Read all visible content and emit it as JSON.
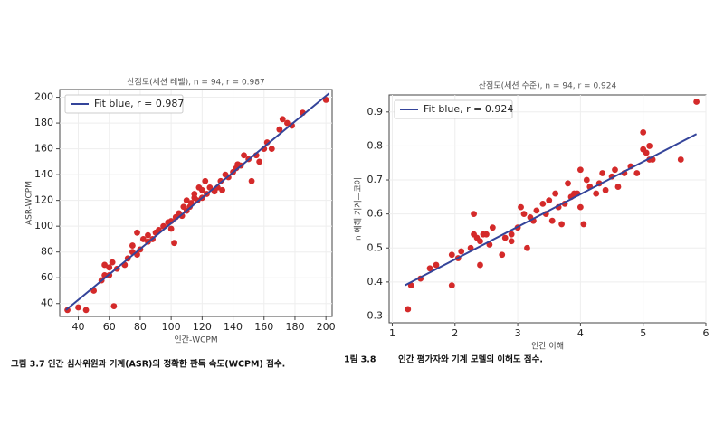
{
  "chart_data": [
    {
      "type": "scatter",
      "title": "산점도(세션 레벨), n = 94, r = 0.987",
      "x_label": "인간-WCPM",
      "y_label": "ASR-WCPM",
      "xlim": [
        28,
        204
      ],
      "ylim": [
        30,
        206
      ],
      "xticks": [
        40,
        60,
        80,
        100,
        120,
        140,
        160,
        180,
        200
      ],
      "yticks": [
        40,
        60,
        80,
        100,
        120,
        140,
        160,
        180,
        200
      ],
      "grid": true,
      "legend": "upper left",
      "points": {
        "color": "#d42a2a",
        "x": [
          33,
          40,
          45,
          50,
          55,
          57,
          57,
          60,
          60,
          63,
          62,
          65,
          70,
          72,
          75,
          75,
          78,
          78,
          80,
          82,
          85,
          85,
          88,
          90,
          92,
          95,
          98,
          100,
          100,
          102,
          103,
          105,
          107,
          108,
          110,
          110,
          112,
          113,
          115,
          115,
          117,
          118,
          120,
          120,
          122,
          123,
          125,
          128,
          130,
          132,
          133,
          135,
          137,
          140,
          142,
          143,
          145,
          147,
          150,
          152,
          155,
          157,
          160,
          162,
          165,
          170,
          172,
          175,
          178,
          185,
          200
        ],
        "y": [
          35,
          37,
          35,
          50,
          58,
          62,
          70,
          62,
          68,
          38,
          72,
          67,
          70,
          75,
          80,
          85,
          78,
          95,
          82,
          90,
          93,
          88,
          90,
          95,
          97,
          100,
          103,
          98,
          104,
          87,
          107,
          110,
          108,
          115,
          112,
          120,
          115,
          118,
          122,
          125,
          120,
          130,
          122,
          128,
          135,
          125,
          130,
          127,
          130,
          135,
          128,
          140,
          138,
          142,
          145,
          148,
          147,
          155,
          152,
          135,
          155,
          150,
          160,
          165,
          160,
          175,
          183,
          180,
          178,
          188,
          198
        ]
      },
      "fit": {
        "name": "Fit blue, r = 0.987",
        "color": "#34449a",
        "x": [
          32,
          202
        ],
        "y": [
          35,
          203
        ]
      },
      "caption": "그림 3.7 인간 심사위원과 기계(ASR)의 정확한 판독 속도(WCPM) 점수."
    },
    {
      "type": "scatter",
      "title": "산점도(세션 수준), n = 94, r = 0.924",
      "x_label": "인간 이해",
      "y_label": "n 예해 기계—코어",
      "xlim": [
        0.95,
        6.0
      ],
      "ylim": [
        0.28,
        0.95
      ],
      "xticks": [
        1,
        2,
        3,
        4,
        5,
        6
      ],
      "yticks": [
        0.3,
        0.4,
        0.5,
        0.6,
        0.7,
        0.8,
        0.9
      ],
      "grid": true,
      "legend": "upper left",
      "points": {
        "color": "#d42a2a",
        "x": [
          1.25,
          1.3,
          1.45,
          1.6,
          1.7,
          1.95,
          1.95,
          2.05,
          2.1,
          2.25,
          2.3,
          2.3,
          2.35,
          2.4,
          2.4,
          2.45,
          2.5,
          2.55,
          2.6,
          2.75,
          2.8,
          2.9,
          2.9,
          3.0,
          3.05,
          3.1,
          3.15,
          3.2,
          3.25,
          3.3,
          3.4,
          3.45,
          3.5,
          3.55,
          3.6,
          3.65,
          3.7,
          3.75,
          3.8,
          3.85,
          3.9,
          3.95,
          4.0,
          4.0,
          4.05,
          4.1,
          4.15,
          4.25,
          4.3,
          4.35,
          4.4,
          4.5,
          4.55,
          4.6,
          4.7,
          4.8,
          4.9,
          5.0,
          5.0,
          5.05,
          5.1,
          5.1,
          5.15,
          5.6,
          5.85
        ],
        "y": [
          0.32,
          0.39,
          0.41,
          0.44,
          0.45,
          0.39,
          0.48,
          0.47,
          0.49,
          0.5,
          0.6,
          0.54,
          0.53,
          0.45,
          0.52,
          0.54,
          0.54,
          0.51,
          0.56,
          0.48,
          0.53,
          0.54,
          0.52,
          0.56,
          0.62,
          0.6,
          0.5,
          0.59,
          0.58,
          0.61,
          0.63,
          0.6,
          0.64,
          0.58,
          0.66,
          0.62,
          0.57,
          0.63,
          0.69,
          0.65,
          0.66,
          0.66,
          0.62,
          0.73,
          0.57,
          0.7,
          0.68,
          0.66,
          0.69,
          0.72,
          0.67,
          0.71,
          0.73,
          0.68,
          0.72,
          0.74,
          0.72,
          0.79,
          0.84,
          0.78,
          0.8,
          0.76,
          0.76,
          0.76,
          0.93
        ]
      },
      "fit": {
        "name": "Fit blue, r = 0.924",
        "color": "#34449a",
        "x": [
          1.2,
          5.85
        ],
        "y": [
          0.39,
          0.835
        ]
      },
      "caption_prefix": "1림 3.8",
      "caption": "인간 평가자와 기계 모델의 이해도 점수."
    }
  ]
}
